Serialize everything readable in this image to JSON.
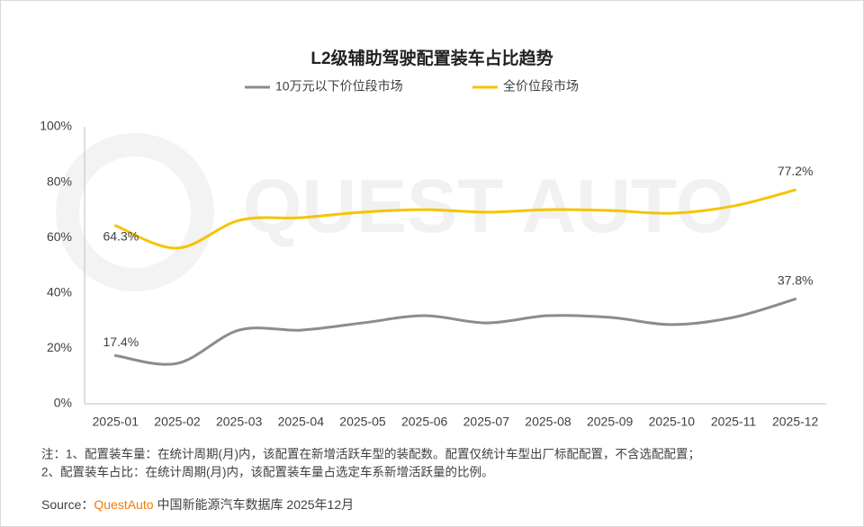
{
  "chart_data": {
    "type": "line",
    "title": "L2级辅助驾驶配置装车占比趋势",
    "categories": [
      "2025-01",
      "2025-02",
      "2025-03",
      "2025-04",
      "2025-05",
      "2025-06",
      "2025-07",
      "2025-08",
      "2025-09",
      "2025-10",
      "2025-11",
      "2025-12"
    ],
    "series": [
      {
        "name": "10万元以下价位段市场",
        "color": "#8c8c8c",
        "values": [
          17.4,
          14.6,
          26.6,
          26.6,
          29.2,
          31.8,
          29.2,
          31.8,
          31.2,
          28.6,
          31.2,
          37.8
        ],
        "value_labels": [
          "17.4%",
          null,
          null,
          null,
          null,
          null,
          null,
          null,
          null,
          null,
          null,
          "37.8%"
        ]
      },
      {
        "name": "全价位段市场",
        "color": "#f5c400",
        "values": [
          64.3,
          56.2,
          66.2,
          67.2,
          69.2,
          70.1,
          69.2,
          70.1,
          69.8,
          68.8,
          71.4,
          77.2
        ],
        "value_labels": [
          "64.3%",
          null,
          null,
          null,
          null,
          null,
          null,
          null,
          null,
          null,
          null,
          "77.2%"
        ]
      }
    ],
    "ylim": [
      0,
      100
    ],
    "yticks": [
      {
        "value": 0,
        "label": "0%"
      },
      {
        "value": 20,
        "label": "20%"
      },
      {
        "value": 40,
        "label": "40%"
      },
      {
        "value": 60,
        "label": "60%"
      },
      {
        "value": 80,
        "label": "80%"
      },
      {
        "value": 100,
        "label": "100%"
      }
    ],
    "grid": false,
    "legend": "top",
    "smooth": true
  },
  "watermark": "QUEST AUTO",
  "notes": [
    "注：1、配置装车量：在统计周期(月)内，该配置在新增活跃车型的装配数。配置仅统计车型出厂标配配置，不含选配配置；",
    "2、配置装车占比：在统计周期(月)内，该配置装车量占选定车系新增活跃量的比例。"
  ],
  "source": {
    "label": "Source：",
    "brand": "QuestAuto",
    "text": "中国新能源汽车数据库 2025年12月"
  }
}
